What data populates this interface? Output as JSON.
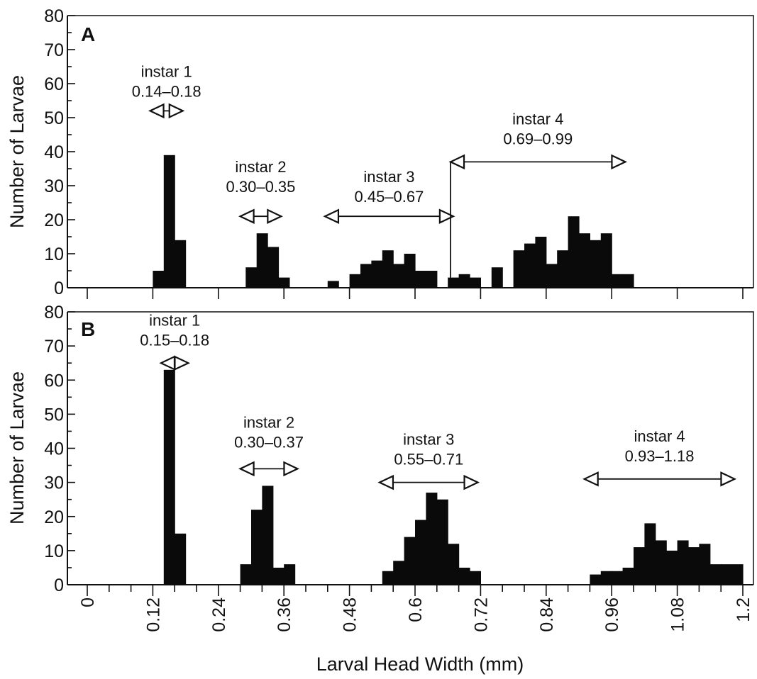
{
  "chart_data": [
    {
      "type": "bar",
      "panel_label": "A",
      "ylabel": "Number of Larvae",
      "ylim": [
        0,
        80
      ],
      "yticks": [
        0,
        10,
        20,
        30,
        40,
        50,
        60,
        70,
        80
      ],
      "xlim": [
        0,
        1.2
      ],
      "bins": [
        {
          "x": 0.12,
          "w": 0.02,
          "v": 5
        },
        {
          "x": 0.14,
          "w": 0.02,
          "v": 39
        },
        {
          "x": 0.16,
          "w": 0.02,
          "v": 14
        },
        {
          "x": 0.29,
          "w": 0.02,
          "v": 6
        },
        {
          "x": 0.31,
          "w": 0.02,
          "v": 16
        },
        {
          "x": 0.33,
          "w": 0.02,
          "v": 12
        },
        {
          "x": 0.35,
          "w": 0.02,
          "v": 3
        },
        {
          "x": 0.44,
          "w": 0.02,
          "v": 2
        },
        {
          "x": 0.48,
          "w": 0.02,
          "v": 4
        },
        {
          "x": 0.5,
          "w": 0.02,
          "v": 7
        },
        {
          "x": 0.52,
          "w": 0.02,
          "v": 8
        },
        {
          "x": 0.54,
          "w": 0.02,
          "v": 11
        },
        {
          "x": 0.56,
          "w": 0.02,
          "v": 7
        },
        {
          "x": 0.58,
          "w": 0.02,
          "v": 10
        },
        {
          "x": 0.6,
          "w": 0.02,
          "v": 5
        },
        {
          "x": 0.62,
          "w": 0.02,
          "v": 5
        },
        {
          "x": 0.66,
          "w": 0.02,
          "v": 3
        },
        {
          "x": 0.68,
          "w": 0.02,
          "v": 4
        },
        {
          "x": 0.7,
          "w": 0.02,
          "v": 3
        },
        {
          "x": 0.74,
          "w": 0.02,
          "v": 6
        },
        {
          "x": 0.78,
          "w": 0.02,
          "v": 11
        },
        {
          "x": 0.8,
          "w": 0.02,
          "v": 13
        },
        {
          "x": 0.82,
          "w": 0.02,
          "v": 15
        },
        {
          "x": 0.84,
          "w": 0.02,
          "v": 7
        },
        {
          "x": 0.86,
          "w": 0.02,
          "v": 11
        },
        {
          "x": 0.88,
          "w": 0.02,
          "v": 21
        },
        {
          "x": 0.9,
          "w": 0.02,
          "v": 16
        },
        {
          "x": 0.92,
          "w": 0.02,
          "v": 14
        },
        {
          "x": 0.94,
          "w": 0.02,
          "v": 16
        },
        {
          "x": 0.96,
          "w": 0.02,
          "v": 4
        },
        {
          "x": 0.98,
          "w": 0.02,
          "v": 4
        }
      ],
      "annotations": [
        {
          "label": "instar 1",
          "range": "0.14–0.18",
          "x1": 0.115,
          "x2": 0.175,
          "y": 52,
          "label_y": 62
        },
        {
          "label": "instar 2",
          "range": "0.30–0.35",
          "x1": 0.28,
          "x2": 0.355,
          "y": 21,
          "label_y": 34
        },
        {
          "label": "instar 3",
          "range": "0.45–0.67",
          "x1": 0.435,
          "x2": 0.67,
          "y": 21,
          "label_y": 31
        },
        {
          "label": "instar 4",
          "range": "0.69–0.99",
          "x1": 0.665,
          "x2": 0.985,
          "y": 37,
          "label_y": 48,
          "divider_x": 0.665,
          "divider_from": 3
        }
      ]
    },
    {
      "type": "bar",
      "panel_label": "B",
      "ylabel": "Number of Larvae",
      "xlabel": "Larval Head Width (mm)",
      "ylim": [
        0,
        80
      ],
      "yticks": [
        0,
        10,
        20,
        30,
        40,
        50,
        60,
        70,
        80
      ],
      "xlim": [
        0,
        1.2
      ],
      "xtick_labels": [
        "0",
        "0.12",
        "0.24",
        "0.36",
        "0.48",
        "0.6",
        "0.72",
        "0.84",
        "0.96",
        "1.08",
        "1.2"
      ],
      "xtick_values": [
        0,
        0.12,
        0.24,
        0.36,
        0.48,
        0.6,
        0.72,
        0.84,
        0.96,
        1.08,
        1.2
      ],
      "bins": [
        {
          "x": 0.14,
          "w": 0.02,
          "v": 63
        },
        {
          "x": 0.16,
          "w": 0.02,
          "v": 15
        },
        {
          "x": 0.28,
          "w": 0.02,
          "v": 6
        },
        {
          "x": 0.3,
          "w": 0.02,
          "v": 22
        },
        {
          "x": 0.32,
          "w": 0.02,
          "v": 29
        },
        {
          "x": 0.34,
          "w": 0.02,
          "v": 5
        },
        {
          "x": 0.36,
          "w": 0.02,
          "v": 6
        },
        {
          "x": 0.54,
          "w": 0.02,
          "v": 4
        },
        {
          "x": 0.56,
          "w": 0.02,
          "v": 7
        },
        {
          "x": 0.58,
          "w": 0.02,
          "v": 14
        },
        {
          "x": 0.6,
          "w": 0.02,
          "v": 19
        },
        {
          "x": 0.62,
          "w": 0.02,
          "v": 27
        },
        {
          "x": 0.64,
          "w": 0.02,
          "v": 25
        },
        {
          "x": 0.66,
          "w": 0.02,
          "v": 12
        },
        {
          "x": 0.68,
          "w": 0.02,
          "v": 5
        },
        {
          "x": 0.7,
          "w": 0.02,
          "v": 4
        },
        {
          "x": 0.92,
          "w": 0.02,
          "v": 3
        },
        {
          "x": 0.94,
          "w": 0.02,
          "v": 4
        },
        {
          "x": 0.96,
          "w": 0.02,
          "v": 4
        },
        {
          "x": 0.98,
          "w": 0.02,
          "v": 5
        },
        {
          "x": 1.0,
          "w": 0.02,
          "v": 11
        },
        {
          "x": 1.02,
          "w": 0.02,
          "v": 18
        },
        {
          "x": 1.04,
          "w": 0.02,
          "v": 13
        },
        {
          "x": 1.06,
          "w": 0.02,
          "v": 10
        },
        {
          "x": 1.08,
          "w": 0.02,
          "v": 13
        },
        {
          "x": 1.1,
          "w": 0.02,
          "v": 11
        },
        {
          "x": 1.12,
          "w": 0.02,
          "v": 12
        },
        {
          "x": 1.14,
          "w": 0.02,
          "v": 6
        },
        {
          "x": 1.16,
          "w": 0.02,
          "v": 6
        },
        {
          "x": 1.18,
          "w": 0.02,
          "v": 6
        }
      ],
      "annotations": [
        {
          "label": "instar 1",
          "range": "0.15–0.18",
          "x1": 0.135,
          "x2": 0.185,
          "y": 65,
          "label_y": 76
        },
        {
          "label": "instar 2",
          "range": "0.30–0.37",
          "x1": 0.28,
          "x2": 0.385,
          "y": 34,
          "label_y": 46
        },
        {
          "label": "instar 3",
          "range": "0.55–0.71",
          "x1": 0.535,
          "x2": 0.715,
          "y": 30,
          "label_y": 41
        },
        {
          "label": "instar 4",
          "range": "0.93–1.18",
          "x1": 0.91,
          "x2": 1.185,
          "y": 31,
          "label_y": 42
        }
      ]
    }
  ]
}
